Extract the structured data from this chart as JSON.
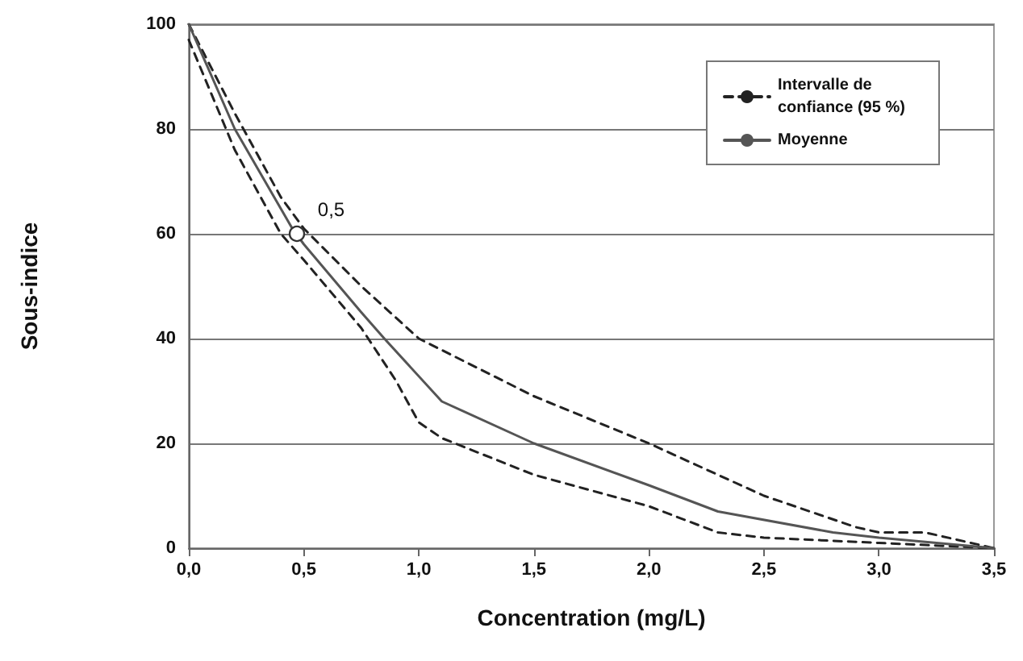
{
  "chart_data": {
    "type": "line",
    "xlabel": "Concentration (mg/L)",
    "ylabel": "Sous-indice",
    "xlim": [
      0,
      3.5
    ],
    "xticks": [
      {
        "value": 0,
        "label": "0,0"
      },
      {
        "value": 0.5,
        "label": "0,5"
      },
      {
        "value": 1,
        "label": "1,0"
      },
      {
        "value": 1.5,
        "label": "1,5"
      },
      {
        "value": 2,
        "label": "2,0"
      },
      {
        "value": 2.5,
        "label": "2,5"
      },
      {
        "value": 3,
        "label": "3,0"
      },
      {
        "value": 3.5,
        "label": "3,5"
      }
    ],
    "ylim": [
      0,
      100
    ],
    "yticks": [
      0,
      20,
      40,
      60,
      80,
      100
    ],
    "grid": "y",
    "legend": "top right",
    "marker": "none",
    "annotations": [
      {
        "text": "0,5",
        "x": 0.47,
        "y": 60
      }
    ],
    "series": [
      {
        "name": "Intervalle de confiance (95 %)",
        "color": "#222222",
        "line_style": "dashed",
        "x": [
          0,
          0.2,
          0.4,
          0.5,
          0.75,
          1.0,
          1.5,
          2.0,
          2.5,
          2.9,
          3.0,
          3.2,
          3.5
        ],
        "values": [
          100,
          83,
          67,
          61,
          50,
          40,
          29,
          20,
          10,
          4,
          3,
          3,
          0
        ]
      },
      {
        "color": "#222222",
        "line_style": "dashed",
        "x": [
          0,
          0.2,
          0.4,
          0.5,
          0.75,
          0.9,
          1.0,
          1.1,
          1.5,
          2.0,
          2.3,
          2.5,
          3.0,
          3.5
        ],
        "values": [
          97,
          76,
          60,
          55,
          42,
          32,
          24,
          21,
          14,
          8,
          3,
          2,
          1,
          0
        ]
      },
      {
        "name": "Moyenne",
        "color": "#555555",
        "line_style": "solid",
        "x": [
          0,
          0.2,
          0.45,
          0.5,
          0.75,
          0.85,
          1.1,
          1.5,
          2.0,
          2.3,
          2.8,
          3.0,
          3.5
        ],
        "values": [
          100,
          80,
          61,
          58,
          45,
          40,
          28,
          20,
          12,
          7,
          3,
          2,
          0
        ]
      }
    ]
  }
}
